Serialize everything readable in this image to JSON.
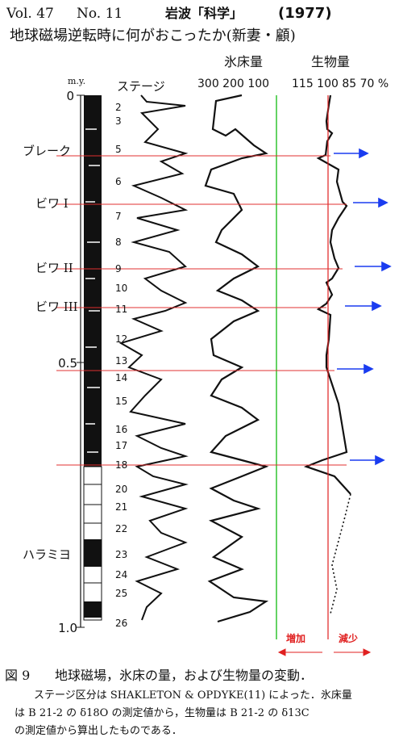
{
  "header": {
    "volume": "Vol. 47",
    "number": "No. 11",
    "journal": "岩波「科学」",
    "year": "(1977)",
    "title": "地球磁場逆転時に何がおこったか(新妻・顧)"
  },
  "figure": {
    "age_axis_title": "m.y.",
    "stage_axis_title": "ステージ",
    "ice_title": "氷床量",
    "ice_scale": "300 200 100",
    "bio_title": "生物量",
    "bio_scale": "115 100 85 70 %",
    "age_ticks": [
      "0",
      "0.5",
      "1.0"
    ],
    "events": [
      "ブレーク",
      "ビワ I",
      "ビワ II",
      "ビワ III",
      "ハラミヨ"
    ],
    "stages": [
      "2",
      "3",
      "5",
      "6",
      "7",
      "8",
      "9",
      "10",
      "11",
      "12",
      "13",
      "14",
      "15",
      "16",
      "17",
      "18",
      "20",
      "21",
      "22",
      "23",
      "24",
      "25",
      "26"
    ],
    "increase": "増加",
    "decrease": "減少"
  },
  "caption": {
    "label": "図 9",
    "title": "地球磁場，氷床の量，および生物量の変動．",
    "lines": [
      "ステージ区分は SHAKLETON & OPDYKE(11) によった．氷床量",
      "は B 21-2 の δ18O の測定値から，生物量は B 21-2 の δ13C",
      "の測定値から算出したものである．"
    ]
  }
}
